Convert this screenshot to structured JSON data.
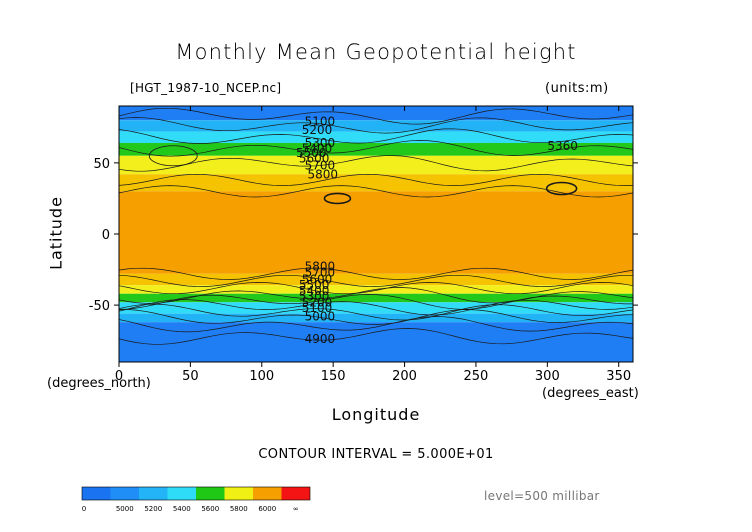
{
  "chart_data": {
    "type": "heatmap",
    "title": "Monthly Mean Geopotential height",
    "subtitle": "[HGT_1987-10_NCEP.nc]",
    "units_label": "(units:m)",
    "xlabel": "Longitude",
    "ylabel": "Latitude",
    "x_sub_label": "(degrees_east)",
    "y_sub_label": "(degrees_north)",
    "xlim": [
      0,
      360
    ],
    "ylim": [
      -90,
      90
    ],
    "x_ticks": [
      0,
      50,
      100,
      150,
      200,
      250,
      300,
      350
    ],
    "y_ticks": [
      50,
      0,
      -50
    ],
    "contour_interval_text": "CONTOUR INTERVAL = 5.000E+01",
    "level_text": "level=500 millibar",
    "contour_labels": [
      "5100",
      "5200",
      "5300",
      "5400",
      "5500",
      "5600",
      "5700",
      "5800",
      "5800",
      "5700",
      "5600",
      "5500",
      "5400",
      "5300",
      "5200",
      "5100",
      "5000",
      "4900",
      "5360"
    ],
    "color_levels": [
      {
        "value": "0",
        "color": "#1a73f0"
      },
      {
        "value": "5000",
        "color": "#1f8ef7"
      },
      {
        "value": "5200",
        "color": "#23b3f7"
      },
      {
        "value": "5400",
        "color": "#2edcf7"
      },
      {
        "value": "5600",
        "color": "#1ec814"
      },
      {
        "value": "5800",
        "color": "#f0f014"
      },
      {
        "value": "6000",
        "color": "#f5a000"
      },
      {
        "value": "∞",
        "color": "#f51414"
      }
    ],
    "bands": [
      {
        "lat_top": 90,
        "lat_bottom": 80,
        "color": "#1f7ef4"
      },
      {
        "lat_top": 80,
        "lat_bottom": 72,
        "color": "#22b2f6"
      },
      {
        "lat_top": 72,
        "lat_bottom": 64,
        "color": "#30dcf7"
      },
      {
        "lat_top": 64,
        "lat_bottom": 55,
        "color": "#22c81a"
      },
      {
        "lat_top": 55,
        "lat_bottom": 42,
        "color": "#f2ef1c"
      },
      {
        "lat_top": 42,
        "lat_bottom": 30,
        "color": "#f5c300"
      },
      {
        "lat_top": 30,
        "lat_bottom": -28,
        "color": "#f5a000"
      },
      {
        "lat_top": -28,
        "lat_bottom": -36,
        "color": "#f5c300"
      },
      {
        "lat_top": -36,
        "lat_bottom": -42,
        "color": "#f2ef1c"
      },
      {
        "lat_top": -42,
        "lat_bottom": -48,
        "color": "#22c81a"
      },
      {
        "lat_top": -48,
        "lat_bottom": -56,
        "color": "#30dcf7"
      },
      {
        "lat_top": -56,
        "lat_bottom": -62,
        "color": "#22b2f6"
      },
      {
        "lat_top": -62,
        "lat_bottom": -90,
        "color": "#1f7ef4"
      }
    ],
    "grid": false
  }
}
